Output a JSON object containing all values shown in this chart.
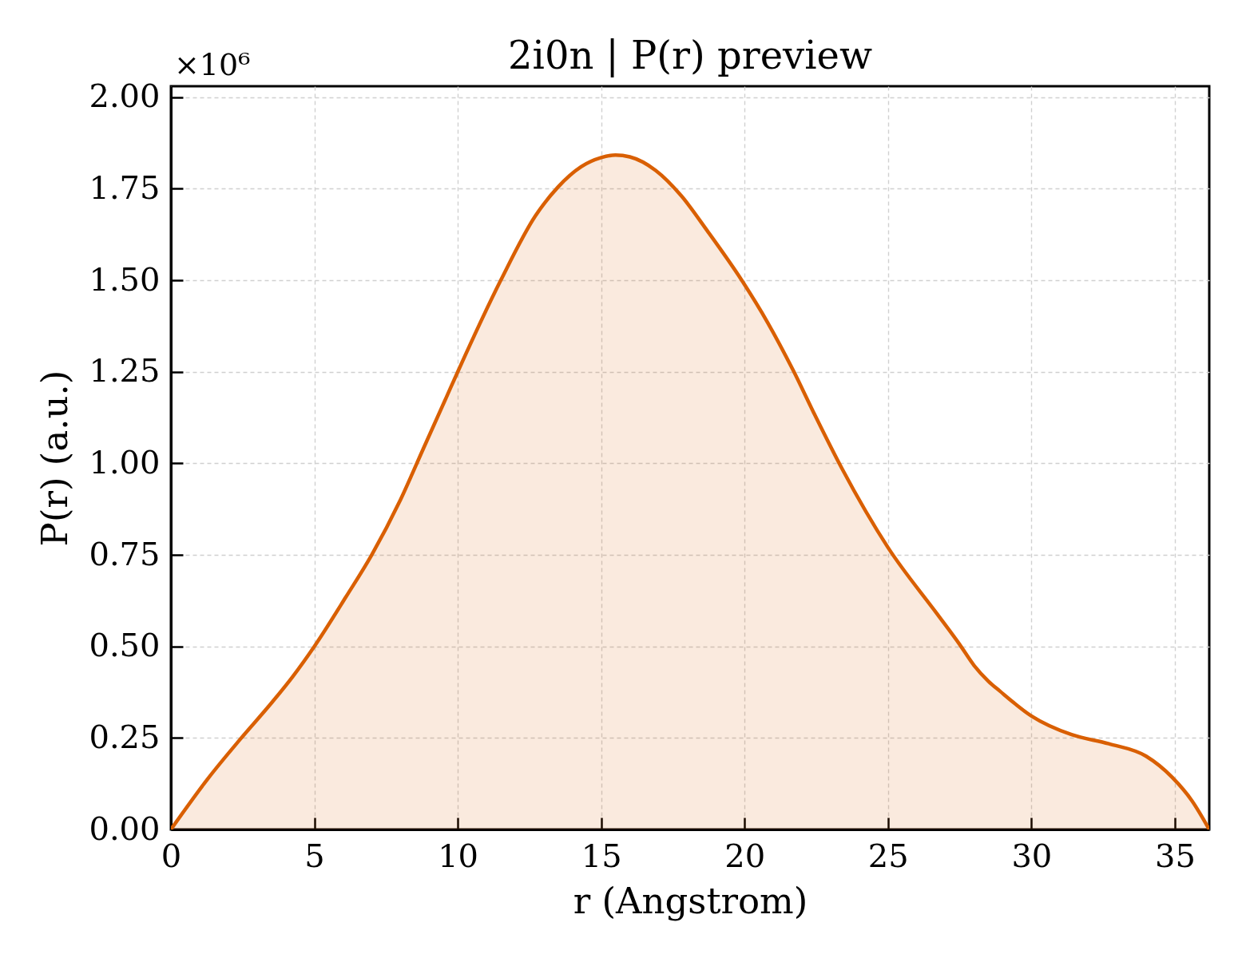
{
  "chart_data": {
    "type": "area",
    "title": "2i0n | P(r) preview",
    "xlabel": "r (Angstrom)",
    "ylabel": "P(r) (a.u.)",
    "annotations": [
      "×10⁶"
    ],
    "x": [
      0,
      1.3,
      2.4,
      3.5,
      4.25,
      5.0,
      6.1,
      7.0,
      8.0,
      8.8,
      9.6,
      10.0,
      11.5,
      12.7,
      13.5,
      14.3,
      15.0,
      15.5,
      16.0,
      16.9,
      17.8,
      18.7,
      19.9,
      20.8,
      21.7,
      22.4,
      23.4,
      25.0,
      26.7,
      27.5,
      28.0,
      28.5,
      28.9,
      30.0,
      31.4,
      32.7,
      34.0,
      34.9,
      35.6,
      36.2
    ],
    "series": [
      {
        "color": "#d95f02",
        "values": [
          0,
          0.14,
          0.245,
          0.345,
          0.418,
          0.5,
          0.635,
          0.75,
          0.9,
          1.04,
          1.18,
          1.25,
          1.5,
          1.675,
          1.755,
          1.81,
          1.835,
          1.842,
          1.837,
          1.8,
          1.73,
          1.635,
          1.5,
          1.385,
          1.253,
          1.14,
          0.985,
          0.77,
          0.59,
          0.505,
          0.448,
          0.405,
          0.378,
          0.31,
          0.259,
          0.234,
          0.2,
          0.143,
          0.078,
          0
        ]
      }
    ],
    "xlim": [
      0,
      36.2
    ],
    "ylim": [
      0,
      2.03
    ],
    "xticks": [
      0,
      5,
      10,
      15,
      20,
      25,
      30,
      35
    ],
    "yticks": [
      {
        "value": 0,
        "label": "0.00"
      },
      0.25,
      {
        "value": 0.5,
        "label": "0.50"
      },
      0.75,
      {
        "value": 1,
        "label": "1.00"
      },
      1.25,
      {
        "value": 1.5,
        "label": "1.50"
      },
      1.75,
      {
        "value": 2,
        "label": "2.00"
      }
    ],
    "grid": true
  }
}
